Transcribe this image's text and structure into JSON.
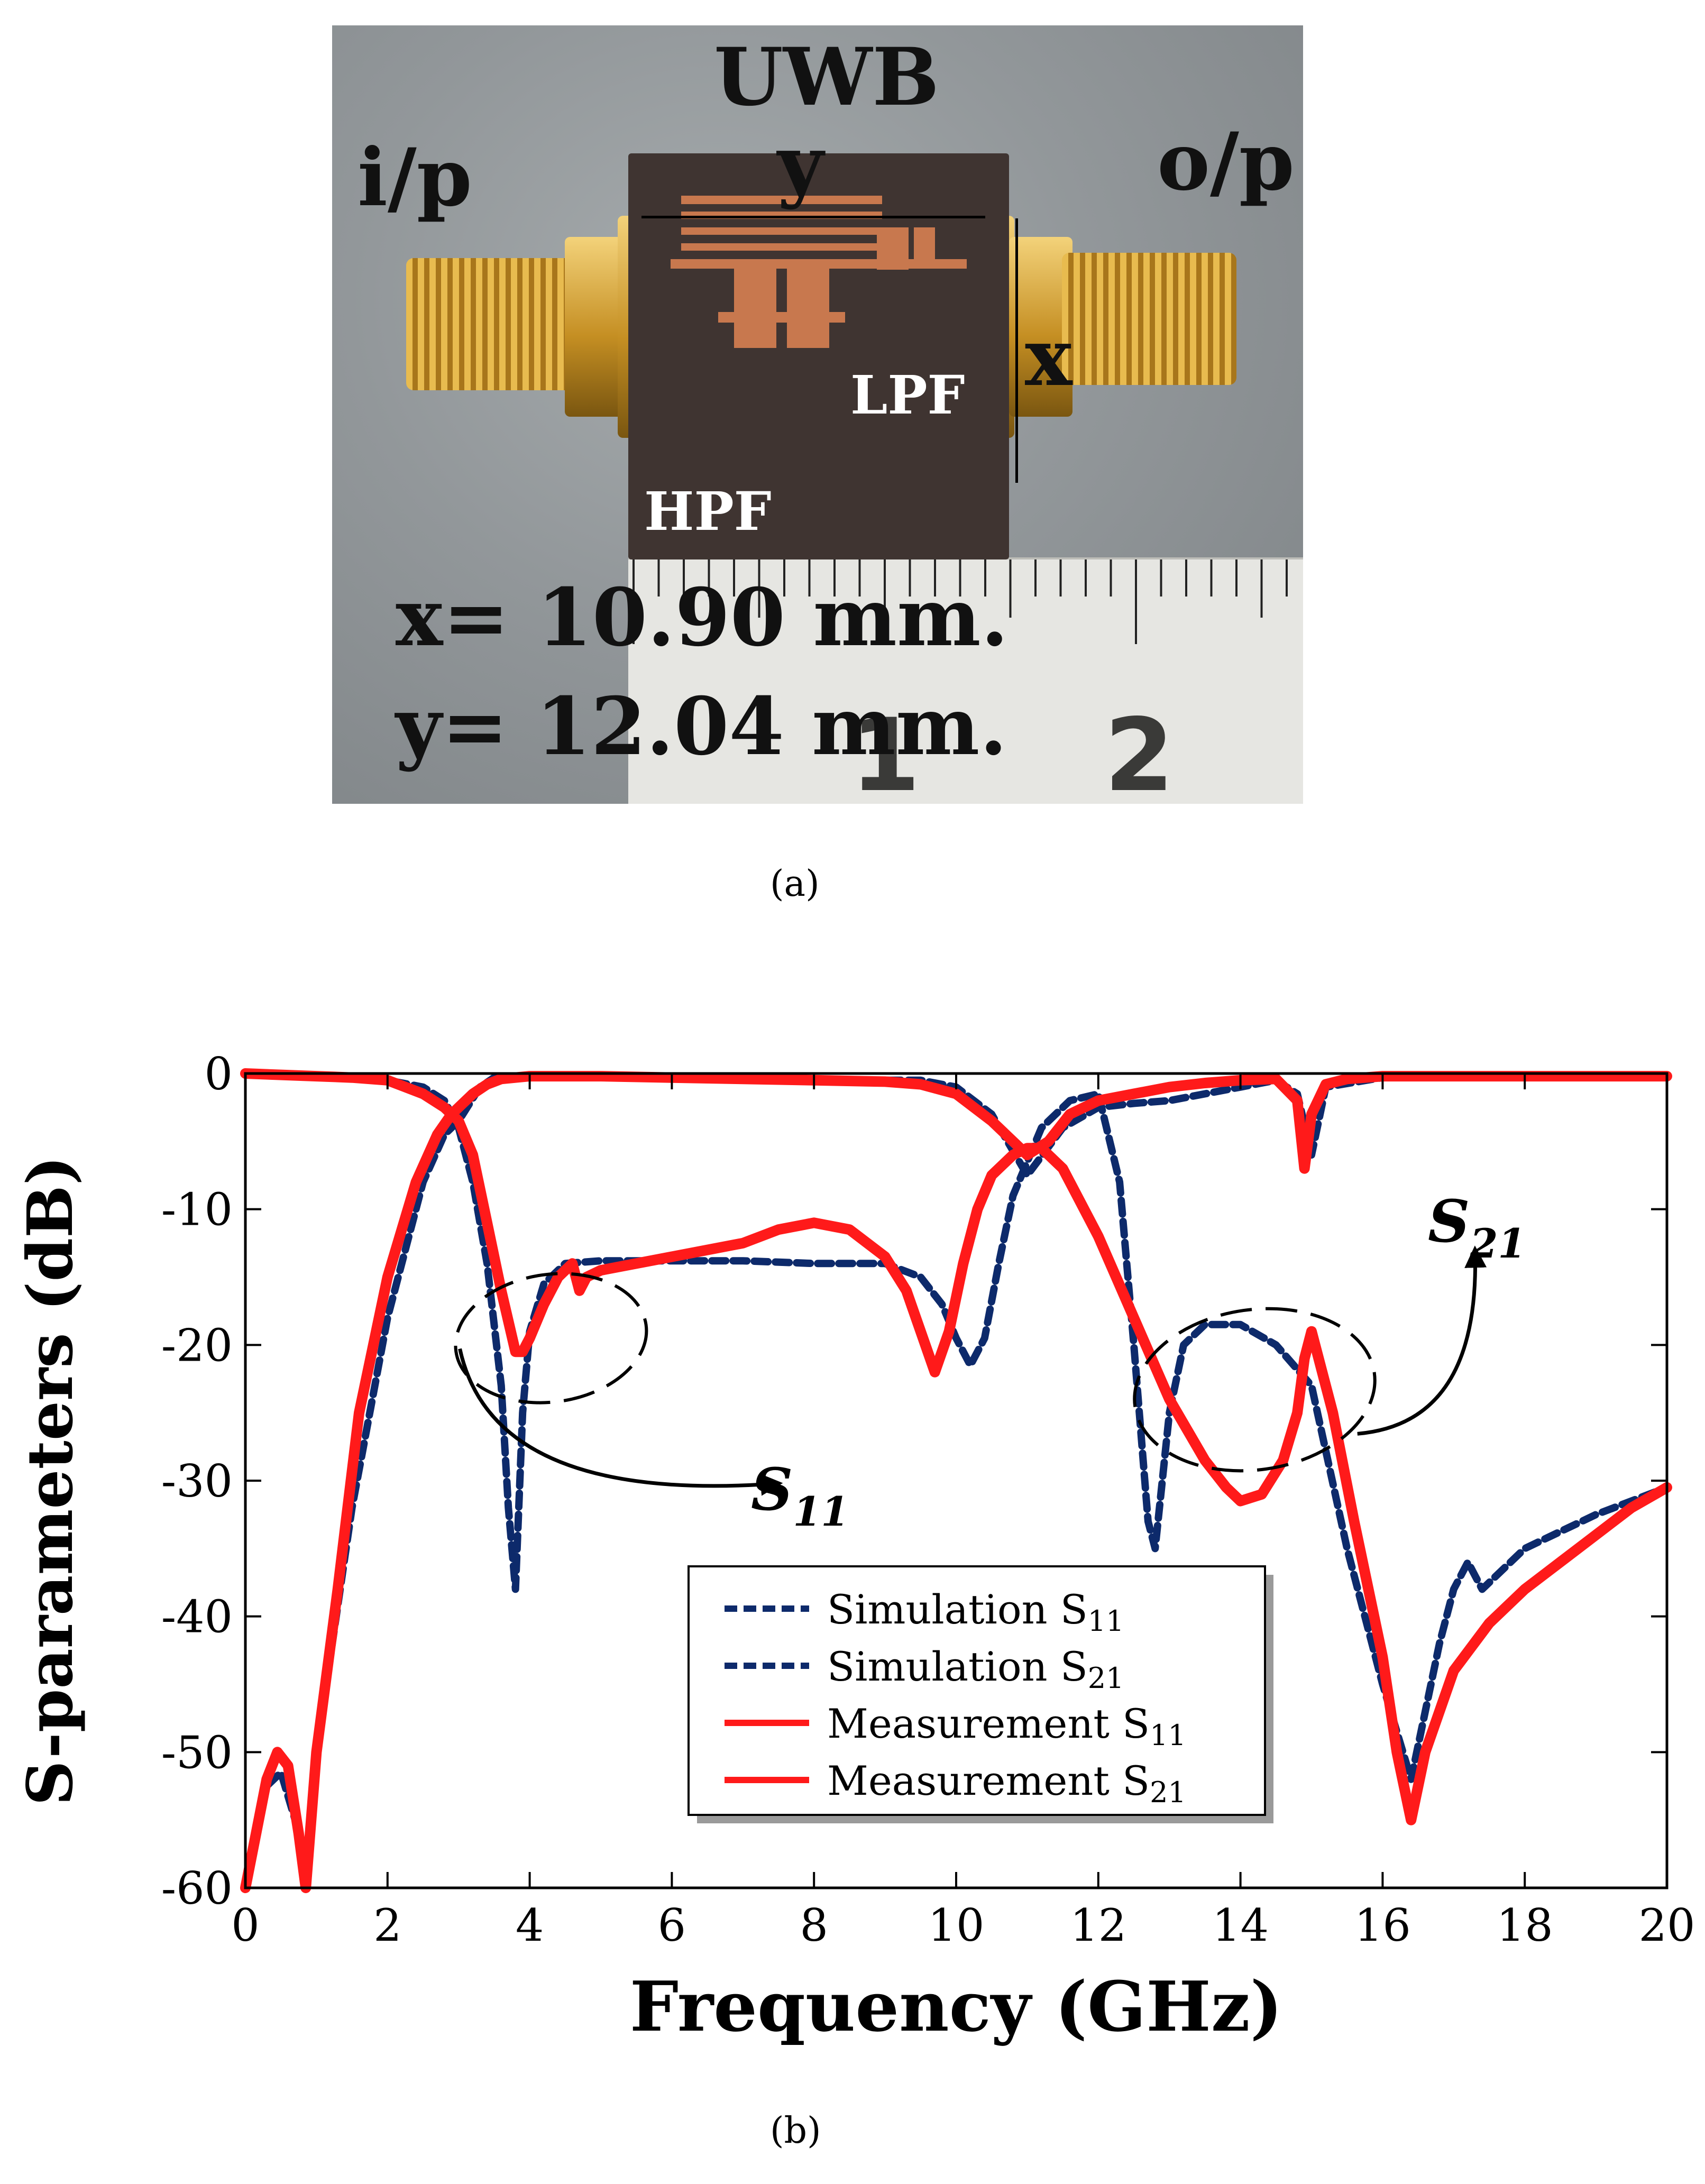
{
  "panel_a": {
    "caption": "(a)",
    "title": "UWB",
    "input_label": "i/p",
    "output_label": "o/p",
    "y_label": "y",
    "x_label": "x",
    "lpf_label": "LPF",
    "hpf_label": "HPF",
    "x_dim": "x= 10.90 mm.",
    "y_dim": "y= 12.04 mm.",
    "ruler_numbers": [
      "1",
      "2"
    ]
  },
  "panel_b": {
    "caption": "(b)"
  },
  "colors": {
    "simulation": "#0d2a6b",
    "measurement": "#ff1a1a"
  },
  "chart_data": {
    "type": "line",
    "title": "",
    "xlabel": "Frequency (GHz)",
    "ylabel": "S-parameters (dB)",
    "xlim": [
      0,
      20
    ],
    "ylim": [
      -60,
      0
    ],
    "xticks": [
      0,
      2,
      4,
      6,
      8,
      10,
      12,
      14,
      16,
      18,
      20
    ],
    "yticks": [
      0,
      -10,
      -20,
      -30,
      -40,
      -50,
      -60
    ],
    "xtick_labels": [
      "0",
      "2",
      "4",
      "6",
      "8",
      "10",
      "12",
      "14",
      "16",
      "18",
      "20"
    ],
    "ytick_labels": [
      "0",
      "-10",
      "-20",
      "-30",
      "-40",
      "-50",
      "-60"
    ],
    "grid": false,
    "legend_position": "lower-right",
    "legend": [
      {
        "label": "Simulation S",
        "sub": "11",
        "style": "dashed",
        "color": "#0d2a6b"
      },
      {
        "label": "Simulation S",
        "sub": "21",
        "style": "dashed",
        "color": "#0d2a6b"
      },
      {
        "label": "Measurement S",
        "sub": "11",
        "style": "solid",
        "color": "#ff1a1a"
      },
      {
        "label": "Measurement S",
        "sub": "21",
        "style": "solid",
        "color": "#ff1a1a"
      }
    ],
    "annotations": [
      {
        "label": "S",
        "sub": "11",
        "ellipse_center": [
          4.3,
          -19.5
        ],
        "ellipse_radii": [
          1.35,
          4.7
        ],
        "arrow_to": [
          7.5,
          -30.2
        ]
      },
      {
        "label": "S",
        "sub": "21",
        "ellipse_center": [
          14.2,
          -23.3
        ],
        "ellipse_radii": [
          1.7,
          5.9
        ],
        "arrow_to": [
          17.3,
          -13.0
        ]
      }
    ],
    "series": [
      {
        "name": "Simulation S11",
        "style": "dashed",
        "x": [
          0,
          0.5,
          1,
          1.5,
          2,
          2.5,
          2.8,
          3.0,
          3.2,
          3.4,
          3.6,
          3.7,
          3.8,
          3.9,
          4.0,
          4.2,
          4.5,
          5,
          6,
          7,
          8,
          9,
          9.5,
          9.8,
          10.0,
          10.2,
          10.4,
          10.6,
          10.8,
          11.2,
          11.6,
          12.0,
          12.3,
          12.5,
          12.7,
          12.8,
          12.9,
          13.0,
          13.2,
          13.5,
          14,
          14.5,
          15,
          15.5,
          16,
          16.4,
          16.8,
          17.0,
          17.2,
          17.4,
          18,
          19,
          20
        ],
        "y": [
          0,
          0,
          -0.1,
          -0.3,
          -0.5,
          -1,
          -2,
          -4,
          -8,
          -14,
          -23,
          -32,
          -38,
          -25,
          -19,
          -15.5,
          -14,
          -13.8,
          -13.8,
          -13.8,
          -14,
          -14,
          -15,
          -17,
          -19.5,
          -21.5,
          -19.5,
          -14,
          -9,
          -4,
          -2,
          -1.5,
          -8,
          -20,
          -33,
          -35,
          -30,
          -25,
          -20,
          -18.5,
          -18.5,
          -20,
          -23,
          -35,
          -45,
          -52,
          -42,
          -38,
          -36,
          -38,
          -35,
          -32.5,
          -30.5
        ]
      },
      {
        "name": "Simulation S21",
        "style": "dashed",
        "x": [
          0,
          0.3,
          0.5,
          0.7,
          0.85,
          1.0,
          1.5,
          2,
          2.5,
          2.8,
          3.0,
          3.3,
          3.5,
          4,
          5,
          6,
          7,
          8,
          9,
          9.5,
          10,
          10.5,
          11,
          11.5,
          12,
          12.5,
          13,
          14,
          14.5,
          14.8,
          15.0,
          15.2,
          16,
          18,
          20
        ],
        "y": [
          -60,
          -52.5,
          -51.5,
          -55,
          -60,
          -50,
          -32,
          -18,
          -8,
          -4.5,
          -3.5,
          -1,
          -0.3,
          -0.2,
          -0.2,
          -0.2,
          -0.5,
          -0.5,
          -0.5,
          -0.5,
          -1,
          -3,
          -7.5,
          -4,
          -2.5,
          -2.2,
          -2,
          -1,
          -0.5,
          -1.5,
          -6,
          -1,
          -0.3,
          -0.2,
          -0.2
        ]
      },
      {
        "name": "Measurement S11",
        "style": "solid",
        "x": [
          0,
          0.5,
          1,
          1.5,
          2,
          2.5,
          2.8,
          3.0,
          3.2,
          3.4,
          3.6,
          3.8,
          3.9,
          4.0,
          4.2,
          4.4,
          4.6,
          4.7,
          4.8,
          5,
          6,
          7,
          7.5,
          8,
          8.5,
          9,
          9.3,
          9.5,
          9.7,
          9.9,
          10.1,
          10.3,
          10.5,
          10.8,
          11.0,
          11.2,
          11.5,
          12,
          12.5,
          13,
          13.5,
          13.8,
          14.0,
          14.3,
          14.6,
          14.8,
          14.9,
          15.0,
          15.3,
          15.6,
          16.0,
          16.2,
          16.4,
          16.6,
          17,
          17.5,
          18,
          18.5,
          19,
          19.5,
          20
        ],
        "y": [
          0,
          -0.1,
          -0.2,
          -0.3,
          -0.5,
          -1.5,
          -2.5,
          -3.5,
          -6,
          -11,
          -16,
          -20.5,
          -20.5,
          -19.5,
          -17,
          -15,
          -14,
          -16,
          -15,
          -14.5,
          -13.5,
          -12.5,
          -11.5,
          -11,
          -11.5,
          -13.5,
          -16,
          -19,
          -22,
          -19,
          -14,
          -10,
          -7.5,
          -6,
          -5.5,
          -5.5,
          -7,
          -12,
          -18,
          -24,
          -28.5,
          -30.5,
          -31.5,
          -31,
          -28.5,
          -25,
          -21,
          -19,
          -25,
          -33,
          -43,
          -50,
          -55,
          -50,
          -44,
          -40.5,
          -38,
          -36,
          -34,
          -32,
          -30.5
        ]
      },
      {
        "name": "Measurement S21",
        "style": "solid",
        "x": [
          0,
          0.3,
          0.45,
          0.6,
          0.75,
          0.85,
          1.0,
          1.3,
          1.6,
          2,
          2.4,
          2.7,
          2.9,
          3.0,
          3.2,
          3.4,
          3.6,
          4,
          5,
          6,
          7,
          8,
          9,
          9.5,
          10,
          10.5,
          11.0,
          11.3,
          11.6,
          12,
          12.5,
          13,
          13.5,
          14,
          14.5,
          14.8,
          14.9,
          15.0,
          15.2,
          15.5,
          16,
          17,
          18,
          19,
          20
        ],
        "y": [
          -60,
          -52,
          -50,
          -51,
          -56,
          -60,
          -50,
          -38,
          -25,
          -15,
          -8,
          -4.5,
          -3,
          -2.5,
          -1.5,
          -0.8,
          -0.4,
          -0.2,
          -0.2,
          -0.3,
          -0.4,
          -0.5,
          -0.6,
          -0.8,
          -1.5,
          -3.5,
          -6,
          -5,
          -3,
          -2,
          -1.5,
          -1,
          -0.7,
          -0.5,
          -0.4,
          -2,
          -7,
          -3,
          -0.8,
          -0.4,
          -0.2,
          -0.2,
          -0.2,
          -0.2,
          -0.2
        ]
      }
    ]
  }
}
